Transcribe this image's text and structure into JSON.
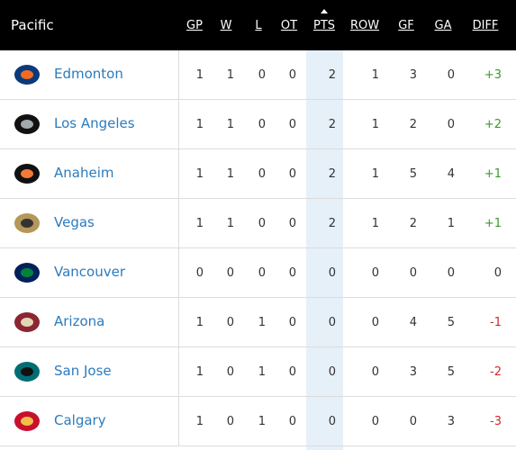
{
  "header": {
    "title": "Pacific",
    "columns": [
      "GP",
      "W",
      "L",
      "OT",
      "PTS",
      "ROW",
      "GF",
      "GA",
      "DIFF"
    ]
  },
  "table": {
    "rows": [
      [
        "Edmonton",
        "1",
        "1",
        "0",
        "0",
        "2",
        "1",
        "3",
        "0",
        "+3"
      ],
      [
        "Los Angeles",
        "1",
        "1",
        "0",
        "0",
        "2",
        "1",
        "2",
        "0",
        "+2"
      ],
      [
        "Anaheim",
        "1",
        "1",
        "0",
        "0",
        "2",
        "1",
        "5",
        "4",
        "+1"
      ],
      [
        "Vegas",
        "1",
        "1",
        "0",
        "0",
        "2",
        "1",
        "2",
        "1",
        "+1"
      ],
      [
        "Vancouver",
        "0",
        "0",
        "0",
        "0",
        "0",
        "0",
        "0",
        "0",
        "0"
      ],
      [
        "Arizona",
        "1",
        "0",
        "1",
        "0",
        "0",
        "0",
        "4",
        "5",
        "-1"
      ],
      [
        "San Jose",
        "1",
        "0",
        "1",
        "0",
        "0",
        "0",
        "3",
        "5",
        "-2"
      ],
      [
        "Calgary",
        "1",
        "0",
        "1",
        "0",
        "0",
        "0",
        "0",
        "3",
        "-3"
      ]
    ]
  }
}
